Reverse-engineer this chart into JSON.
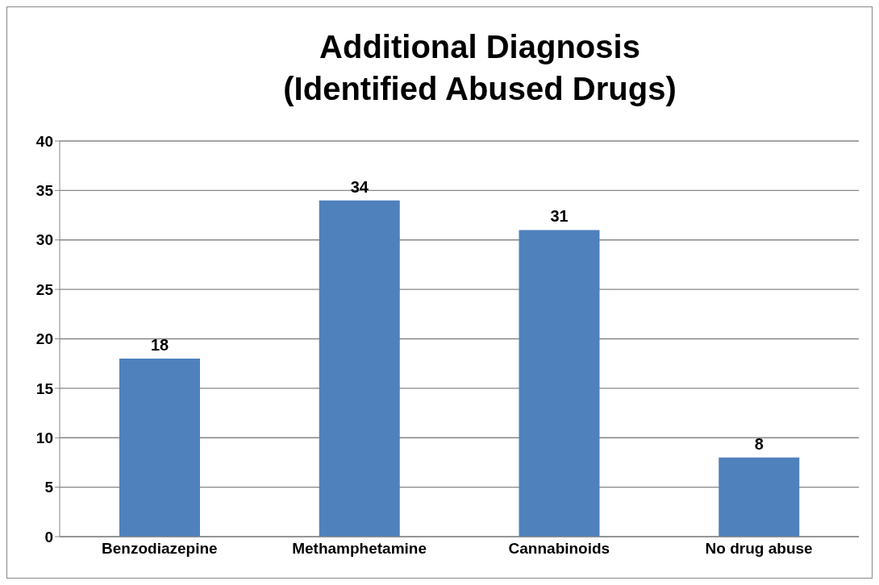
{
  "chart_data": {
    "type": "bar",
    "title": "Additional Diagnosis\n(Identified Abused Drugs)",
    "categories": [
      "Benzodiazepine",
      "Methamphetamine",
      "Cannabinoids",
      "No drug abuse"
    ],
    "values": [
      18,
      34,
      31,
      8
    ],
    "color": "#4f81bd",
    "ylim": [
      0,
      40
    ],
    "yticks": [
      0,
      5,
      10,
      15,
      20,
      25,
      30,
      35,
      40
    ],
    "grid": "y",
    "data_labels": true
  }
}
